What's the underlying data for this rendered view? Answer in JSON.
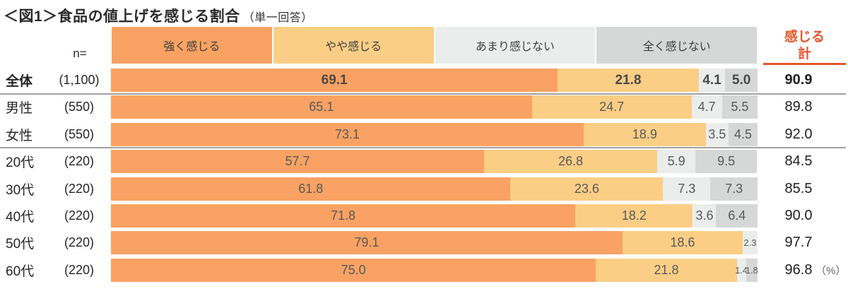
{
  "title": {
    "main": "＜図1＞食品の値上げを感じる割合",
    "sub": "（単一回答）"
  },
  "n_header": "n=",
  "total_header": {
    "line1": "感じる",
    "line2": "計"
  },
  "percent_note": "（%）",
  "colors": {
    "segment_colors": [
      "#F9A263",
      "#FBCE85",
      "#EBECEC",
      "#D6D7D7"
    ],
    "accent_orange": "#E5562B",
    "separator_gray": "#A0A0A0",
    "value_text": "#595959",
    "label_text": "#262626",
    "legend_text": "#3F3F3F",
    "background": "#FFFFFF"
  },
  "chart_data": {
    "type": "bar",
    "orientation": "horizontal-stacked",
    "title": "＜図1＞食品の値上げを感じる割合（単一回答）",
    "legend": [
      "強く感じる",
      "やや感じる",
      "あまり感じない",
      "全く感じない"
    ],
    "legend_position": "top",
    "xlim": [
      0,
      100
    ],
    "unit": "%",
    "grid": false,
    "total_column_label": "感じる計",
    "categories": [
      "全体",
      "男性",
      "女性",
      "20代",
      "30代",
      "40代",
      "50代",
      "60代"
    ],
    "n_values": [
      "(1,100)",
      "(550)",
      "(550)",
      "(220)",
      "(220)",
      "(220)",
      "(220)",
      "(220)"
    ],
    "series": [
      {
        "name": "強く感じる",
        "values": [
          69.1,
          65.1,
          73.1,
          57.7,
          61.8,
          71.8,
          79.1,
          75.0
        ]
      },
      {
        "name": "やや感じる",
        "values": [
          21.8,
          24.7,
          18.9,
          26.8,
          23.6,
          18.2,
          18.6,
          21.8
        ]
      },
      {
        "name": "あまり感じない",
        "values": [
          4.1,
          4.7,
          3.5,
          5.9,
          7.3,
          3.6,
          2.3,
          1.4
        ]
      },
      {
        "name": "全く感じない",
        "values": [
          5.0,
          5.5,
          4.5,
          9.5,
          7.3,
          6.4,
          0.0,
          1.8
        ]
      }
    ],
    "totals": [
      90.9,
      89.8,
      92.0,
      84.5,
      85.5,
      90.0,
      97.7,
      96.8
    ],
    "emphasized_row": 0,
    "separator_after_rows": [
      0,
      2
    ],
    "value_labels_hidden_when_zero": true
  }
}
